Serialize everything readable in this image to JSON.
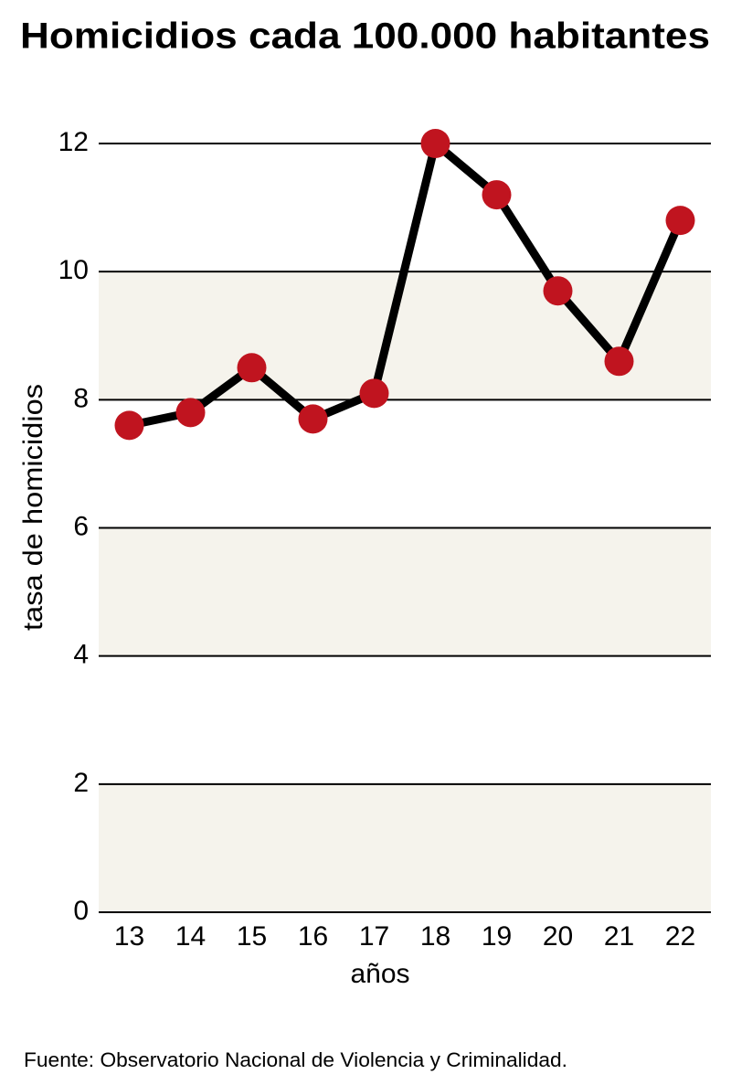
{
  "chart_data": {
    "type": "line",
    "title": "Homicidios cada 100.000 habitantes",
    "categories": [
      "13",
      "14",
      "15",
      "16",
      "17",
      "18",
      "19",
      "20",
      "21",
      "22"
    ],
    "values": [
      7.6,
      7.8,
      8.5,
      7.7,
      8.1,
      12.0,
      11.2,
      9.7,
      8.6,
      10.8
    ],
    "color": "#000000",
    "marker_color": "#c0141f",
    "ylim": [
      0,
      12
    ],
    "yticks": [
      0,
      2,
      4,
      6,
      8,
      10,
      12
    ],
    "grid": true,
    "band_color": "#f5f3ec",
    "xlabel": "años",
    "ylabel": "tasa de homicidios",
    "source": "Fuente: Observatorio Nacional de Violencia y Criminalidad."
  }
}
